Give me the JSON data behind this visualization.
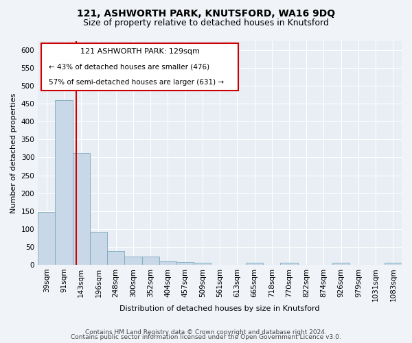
{
  "title": "121, ASHWORTH PARK, KNUTSFORD, WA16 9DQ",
  "subtitle": "Size of property relative to detached houses in Knutsford",
  "xlabel": "Distribution of detached houses by size in Knutsford",
  "ylabel": "Number of detached properties",
  "categories": [
    "39sqm",
    "91sqm",
    "143sqm",
    "196sqm",
    "248sqm",
    "300sqm",
    "352sqm",
    "404sqm",
    "457sqm",
    "509sqm",
    "561sqm",
    "613sqm",
    "665sqm",
    "718sqm",
    "770sqm",
    "822sqm",
    "874sqm",
    "926sqm",
    "979sqm",
    "1031sqm",
    "1083sqm"
  ],
  "values": [
    148,
    460,
    313,
    92,
    38,
    22,
    22,
    10,
    8,
    6,
    0,
    0,
    5,
    0,
    5,
    0,
    0,
    5,
    0,
    0,
    5
  ],
  "bar_color": "#c8d8e8",
  "bar_edge_color": "#7aaabb",
  "property_line_color": "#cc0000",
  "ylim": [
    0,
    625
  ],
  "yticks": [
    0,
    50,
    100,
    150,
    200,
    250,
    300,
    350,
    400,
    450,
    500,
    550,
    600
  ],
  "annotation_text_line1": "121 ASHWORTH PARK: 129sqm",
  "annotation_text_line2": "← 43% of detached houses are smaller (476)",
  "annotation_text_line3": "57% of semi-detached houses are larger (631) →",
  "footnote1": "Contains HM Land Registry data © Crown copyright and database right 2024.",
  "footnote2": "Contains public sector information licensed under the Open Government Licence v3.0.",
  "bg_color": "#f0f4f8",
  "plot_bg_color": "#e8eef4",
  "grid_color": "#ffffff",
  "title_fontsize": 10,
  "subtitle_fontsize": 9,
  "label_fontsize": 8,
  "tick_fontsize": 7.5,
  "footnote_fontsize": 6.5
}
